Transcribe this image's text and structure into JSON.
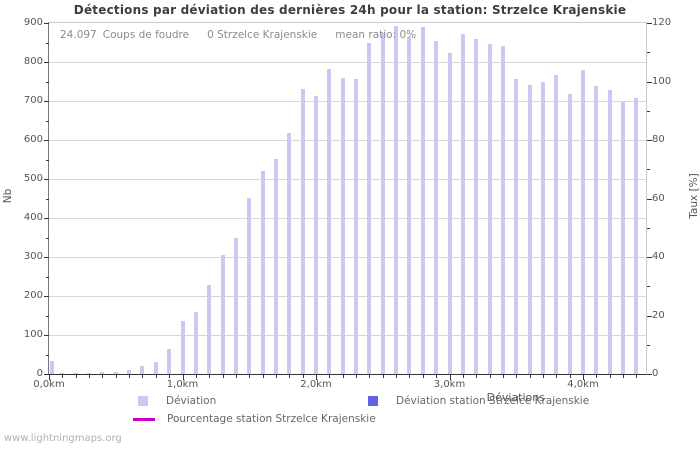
{
  "header": {
    "title": "Détections par déviation des dernières 24h pour la station: Strzelce Krajenskie"
  },
  "stats": {
    "count": "24.097",
    "count_label": "Coups de foudre",
    "station_count": "0 Strzelce Krajenskie",
    "mean_ratio": "mean ratio: 0%"
  },
  "colors": {
    "deviation_bar": "#c9c9f1",
    "station_bar": "#6262e2",
    "percentage_line": "#cc00cc",
    "grid": "#d8d8d8",
    "axis_text": "#55555a"
  },
  "legend": {
    "deviation": "Déviation",
    "station": "Déviation station Strzelce Krajenskie",
    "percentage": "Pourcentage station Strzelce Krajenskie"
  },
  "watermark": "www.lightningmaps.org",
  "chart_data": {
    "type": "bar",
    "title": "Détections par déviation des dernières 24h pour la station: Strzelce Krajenskie",
    "x_axis": {
      "label": "Déviations",
      "unit": "km",
      "start_km": 0.0,
      "step_km": 0.1,
      "max_km": 4.47,
      "tick_km": [
        0,
        1,
        2,
        3,
        4
      ],
      "tick_labels": [
        "0,0km",
        "1,0km",
        "2,0km",
        "3,0km",
        "4,0km"
      ],
      "minor_step_km": 0.1
    },
    "y_left": {
      "label": "Nb",
      "min": 0,
      "max": 900,
      "tick_step": 100,
      "minor_step": 50
    },
    "y_right": {
      "label": "Taux [%]",
      "min": 0,
      "max": 120,
      "tick_step": 20,
      "minor_step": 10
    },
    "grid": true,
    "legend_position": "bottom",
    "series": [
      {
        "name": "Déviation",
        "type": "bar",
        "color": "#c9c9f1",
        "x_km": [
          0.0,
          0.1,
          0.2,
          0.3,
          0.4,
          0.5,
          0.6,
          0.7,
          0.8,
          0.9,
          1.0,
          1.1,
          1.2,
          1.3,
          1.4,
          1.5,
          1.6,
          1.7,
          1.8,
          1.9,
          2.0,
          2.1,
          2.2,
          2.3,
          2.4,
          2.5,
          2.6,
          2.7,
          2.8,
          2.9,
          3.0,
          3.1,
          3.2,
          3.3,
          3.4,
          3.5,
          3.6,
          3.7,
          3.8,
          3.9,
          4.0,
          4.1,
          4.2,
          4.3,
          4.4
        ],
        "values": [
          33,
          2,
          2,
          3,
          5,
          6,
          10,
          21,
          32,
          64,
          135,
          160,
          228,
          306,
          348,
          452,
          520,
          550,
          617,
          730,
          714,
          783,
          760,
          757,
          849,
          875,
          892,
          865,
          890,
          855,
          822,
          873,
          858,
          847,
          840,
          756,
          740,
          749,
          766,
          717,
          780,
          738,
          727,
          698,
          708
        ]
      },
      {
        "name": "Déviation station Strzelce Krajenskie",
        "type": "bar",
        "color": "#6262e2",
        "values_constant": 0
      },
      {
        "name": "Pourcentage station Strzelce Krajenskie",
        "type": "line",
        "color": "#cc00cc",
        "axis": "right",
        "values_constant": 0
      }
    ]
  }
}
